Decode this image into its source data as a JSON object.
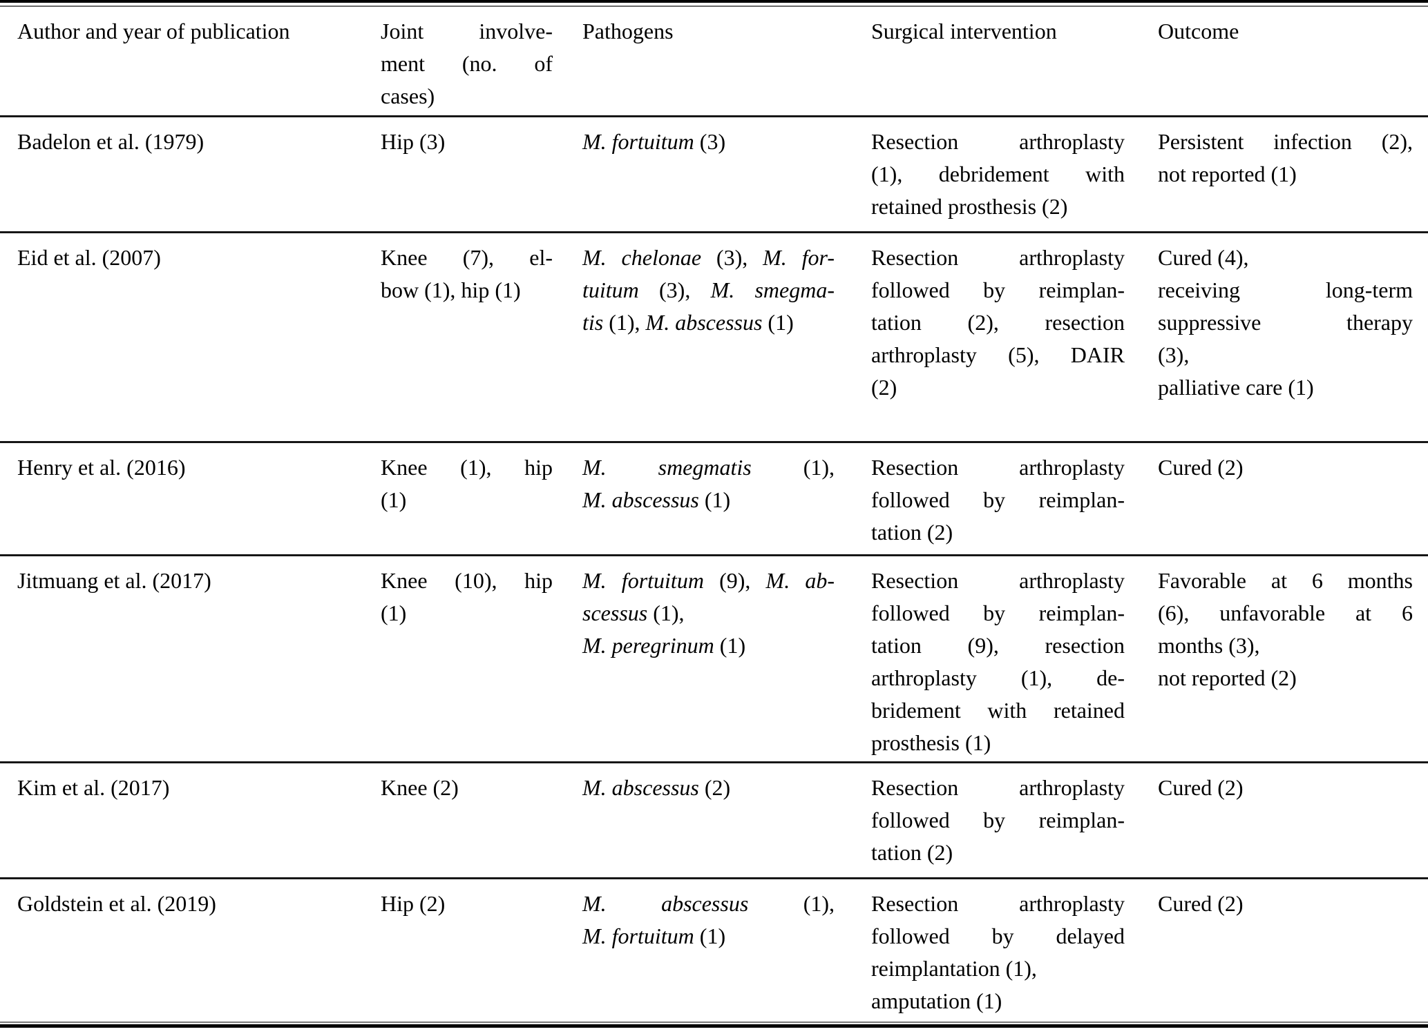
{
  "document": {
    "kind": "academic-review-table",
    "background_color": "#ffffff",
    "text_color": "#000000",
    "rule_color": "#161616"
  },
  "table": {
    "columns": [
      {
        "label": "Author and year of publication",
        "paras": [
          [
            [
              "Author and year of publication"
            ]
          ]
        ]
      },
      {
        "label": "Joint involvement (no. of cases)",
        "paras": [
          [
            [
              "Joint involve-"
            ],
            [
              "ment (no. of"
            ],
            [
              "cases)"
            ]
          ]
        ]
      },
      {
        "label": "Pathogens",
        "paras": [
          [
            [
              "Pathogens"
            ]
          ]
        ]
      },
      {
        "label": "Surgical intervention",
        "paras": [
          [
            [
              "Surgical intervention"
            ]
          ]
        ]
      },
      {
        "label": "Outcome",
        "paras": [
          [
            [
              "Outcome"
            ]
          ]
        ]
      }
    ],
    "rows": [
      {
        "author": [
          [
            [
              "Badelon et al. (1979)"
            ]
          ]
        ],
        "joint": [
          [
            [
              "Hip (3)"
            ]
          ]
        ],
        "pathogens": [
          [
            [
              {
                "t": "M. fortuitum",
                "i": true
              },
              " (3)"
            ]
          ]
        ],
        "surgical": [
          [
            [
              "Resection arthroplasty"
            ],
            [
              "(1), debridement with"
            ],
            [
              "retained prosthesis (2)"
            ]
          ]
        ],
        "outcome": [
          [
            [
              "Persistent infection (2),"
            ],
            [
              "not reported (1)"
            ]
          ]
        ]
      },
      {
        "author": [
          [
            [
              "Eid et al. (2007)"
            ]
          ]
        ],
        "joint": [
          [
            [
              "Knee (7), el-"
            ],
            [
              "bow (1), hip (1)"
            ]
          ]
        ],
        "pathogens": [
          [
            [
              {
                "t": "M. chelonae",
                "i": true
              },
              " (3), ",
              {
                "t": "M. for-",
                "i": true
              }
            ],
            [
              {
                "t": "tuitum",
                "i": true
              },
              " (3), ",
              {
                "t": "M. smegma-",
                "i": true
              }
            ],
            [
              {
                "t": "tis",
                "i": true
              },
              " (1), ",
              {
                "t": "M. abscessus",
                "i": true
              },
              " (1)"
            ]
          ]
        ],
        "surgical": [
          [
            [
              "Resection arthroplasty"
            ],
            [
              "followed by reimplan-"
            ],
            [
              "tation (2), resection"
            ],
            [
              "arthroplasty (5), DAIR"
            ],
            [
              "(2)"
            ]
          ]
        ],
        "outcome": [
          [
            [
              "Cured (4),"
            ]
          ],
          [
            [
              "receiving long-term"
            ],
            [
              "suppressive therapy"
            ],
            [
              "(3),"
            ]
          ],
          [
            [
              "palliative care (1)"
            ]
          ]
        ]
      },
      {
        "author": [
          [
            [
              "Henry et al. (2016)"
            ]
          ]
        ],
        "joint": [
          [
            [
              "Knee (1), hip"
            ],
            [
              "(1)"
            ]
          ]
        ],
        "pathogens": [
          [
            [
              {
                "t": "M. smegmatis",
                "i": true
              },
              " (1),"
            ],
            [
              {
                "t": "M. abscessus",
                "i": true
              },
              " (1)"
            ]
          ]
        ],
        "surgical": [
          [
            [
              "Resection arthroplasty"
            ],
            [
              "followed by reimplan-"
            ],
            [
              "tation (2)"
            ]
          ]
        ],
        "outcome": [
          [
            [
              "Cured (2)"
            ]
          ]
        ]
      },
      {
        "author": [
          [
            [
              "Jitmuang et al. (2017)"
            ]
          ]
        ],
        "joint": [
          [
            [
              "Knee (10), hip"
            ],
            [
              "(1)"
            ]
          ]
        ],
        "pathogens": [
          [
            [
              {
                "t": "M. fortuitum",
                "i": true
              },
              " (9), ",
              {
                "t": "M. ab-",
                "i": true
              }
            ],
            [
              {
                "t": "scessus",
                "i": true
              },
              " (1),"
            ]
          ],
          [
            [
              {
                "t": "M. peregrinum",
                "i": true
              },
              " (1)"
            ]
          ]
        ],
        "surgical": [
          [
            [
              "Resection arthroplasty"
            ],
            [
              "followed by reimplan-"
            ],
            [
              "tation (9), resection"
            ],
            [
              "arthroplasty (1), de-"
            ],
            [
              "bridement with retained"
            ],
            [
              "prosthesis (1)"
            ]
          ]
        ],
        "outcome": [
          [
            [
              "Favorable at 6 months"
            ],
            [
              "(6), unfavorable at 6"
            ],
            [
              "months (3),"
            ]
          ],
          [
            [
              "not reported (2)"
            ]
          ]
        ]
      },
      {
        "author": [
          [
            [
              "Kim et al. (2017)"
            ]
          ]
        ],
        "joint": [
          [
            [
              "Knee (2)"
            ]
          ]
        ],
        "pathogens": [
          [
            [
              {
                "t": "M. abscessus",
                "i": true
              },
              " (2)"
            ]
          ]
        ],
        "surgical": [
          [
            [
              "Resection arthroplasty"
            ],
            [
              "followed by reimplan-"
            ],
            [
              "tation (2)"
            ]
          ]
        ],
        "outcome": [
          [
            [
              "Cured (2)"
            ]
          ]
        ]
      },
      {
        "author": [
          [
            [
              "Goldstein et al. (2019)"
            ]
          ]
        ],
        "joint": [
          [
            [
              "Hip (2)"
            ]
          ]
        ],
        "pathogens": [
          [
            [
              {
                "t": "M. abscessus",
                "i": true
              },
              " (1),"
            ],
            [
              {
                "t": "M. fortuitum",
                "i": true
              },
              " (1)"
            ]
          ]
        ],
        "surgical": [
          [
            [
              "Resection arthroplasty"
            ],
            [
              "followed by delayed"
            ],
            [
              "reimplantation (1),"
            ]
          ],
          [
            [
              "amputation (1)"
            ]
          ]
        ],
        "outcome": [
          [
            [
              "Cured (2)"
            ]
          ]
        ]
      }
    ]
  }
}
